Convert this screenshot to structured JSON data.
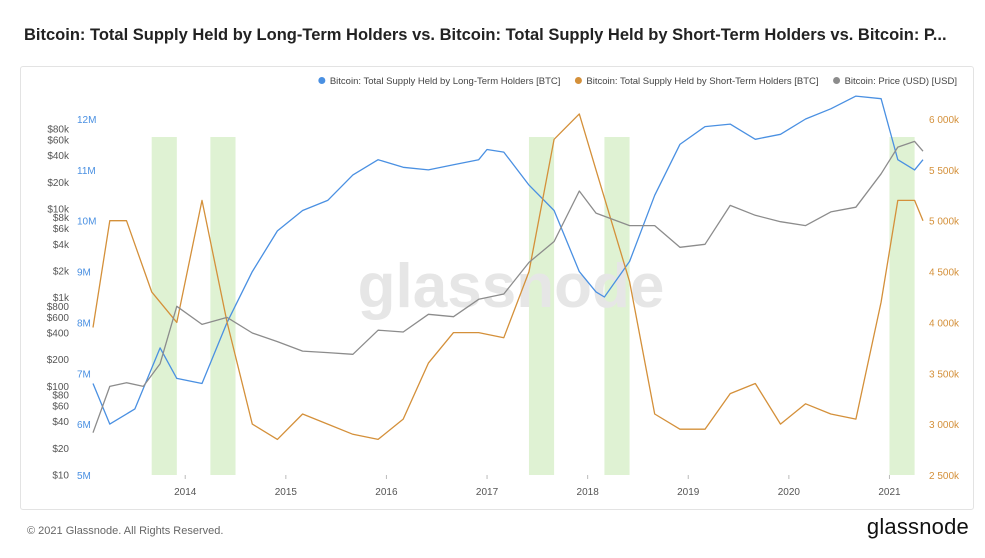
{
  "title": "Bitcoin: Total Supply Held by Long-Term Holders vs. Bitcoin: Total Supply Held by Short-Term Holders vs. Bitcoin: P...",
  "footer": "© 2021 Glassnode. All Rights Reserved.",
  "brand": "glassnode",
  "watermark": "glassnode",
  "chart_data": {
    "type": "line",
    "legend_position": "top-right",
    "grid": false,
    "x_ticks": [
      "2014",
      "2015",
      "2016",
      "2017",
      "2018",
      "2019",
      "2020",
      "2021"
    ],
    "xlim": [
      "2013-02",
      "2021-05"
    ],
    "axes": {
      "price": {
        "scale": "log",
        "ticks": [
          "$10",
          "$20",
          "$40",
          "$60",
          "$80",
          "$100",
          "$200",
          "$400",
          "$600",
          "$800",
          "$1k",
          "$2k",
          "$4k",
          "$6k",
          "$8k",
          "$10k",
          "$20k",
          "$40k",
          "$60k",
          "$80k"
        ],
        "range": [
          10,
          80000
        ]
      },
      "lth": {
        "ticks": [
          "5M",
          "6M",
          "7M",
          "8M",
          "9M",
          "10M",
          "11M",
          "12M"
        ],
        "range": [
          5000000,
          12000000
        ],
        "color": "#4a90e2"
      },
      "sth": {
        "ticks": [
          "2 500k",
          "3 000k",
          "3 500k",
          "4 000k",
          "4 500k",
          "5 000k",
          "5 500k",
          "6 000k"
        ],
        "range": [
          2500000,
          6000000
        ],
        "color": "#d4903a"
      }
    },
    "shaded_periods": [
      [
        "2013-09",
        "2013-12"
      ],
      [
        "2014-04",
        "2014-07"
      ],
      [
        "2017-06",
        "2017-09"
      ],
      [
        "2018-03",
        "2018-06"
      ],
      [
        "2021-01",
        "2021-04"
      ]
    ],
    "series": [
      {
        "name": "Bitcoin: Total Supply Held by Long-Term Holders [BTC]",
        "color": "#4a90e2",
        "axis": "lth",
        "points": [
          [
            "2013-02",
            6.8
          ],
          [
            "2013-04",
            6.0
          ],
          [
            "2013-07",
            6.3
          ],
          [
            "2013-10",
            7.5
          ],
          [
            "2013-12",
            6.9
          ],
          [
            "2014-03",
            6.8
          ],
          [
            "2014-06",
            8.0
          ],
          [
            "2014-09",
            9.0
          ],
          [
            "2014-12",
            9.8
          ],
          [
            "2015-03",
            10.2
          ],
          [
            "2015-06",
            10.4
          ],
          [
            "2015-09",
            10.9
          ],
          [
            "2015-12",
            11.2
          ],
          [
            "2016-03",
            11.05
          ],
          [
            "2016-06",
            11.0
          ],
          [
            "2016-09",
            11.1
          ],
          [
            "2016-12",
            11.2
          ],
          [
            "2017-01",
            11.4
          ],
          [
            "2017-03",
            11.35
          ],
          [
            "2017-06",
            10.7
          ],
          [
            "2017-09",
            10.2
          ],
          [
            "2017-12",
            9.0
          ],
          [
            "2018-02",
            8.6
          ],
          [
            "2018-03",
            8.5
          ],
          [
            "2018-06",
            9.2
          ],
          [
            "2018-09",
            10.5
          ],
          [
            "2018-12",
            11.5
          ],
          [
            "2019-03",
            11.85
          ],
          [
            "2019-06",
            11.9
          ],
          [
            "2019-09",
            11.6
          ],
          [
            "2019-12",
            11.7
          ],
          [
            "2020-03",
            12.0
          ],
          [
            "2020-06",
            12.2
          ],
          [
            "2020-09",
            12.45
          ],
          [
            "2020-12",
            12.4
          ],
          [
            "2021-02",
            11.2
          ],
          [
            "2021-04",
            11.0
          ],
          [
            "2021-05",
            11.2
          ]
        ]
      },
      {
        "name": "Bitcoin: Total Supply Held by Short-Term Holders [BTC]",
        "color": "#d4903a",
        "axis": "sth",
        "points": [
          [
            "2013-02",
            3.95
          ],
          [
            "2013-04",
            5.0
          ],
          [
            "2013-06",
            5.0
          ],
          [
            "2013-09",
            4.3
          ],
          [
            "2013-12",
            4.0
          ],
          [
            "2014-03",
            5.2
          ],
          [
            "2014-06",
            4.0
          ],
          [
            "2014-09",
            3.0
          ],
          [
            "2014-12",
            2.85
          ],
          [
            "2015-03",
            3.1
          ],
          [
            "2015-06",
            3.0
          ],
          [
            "2015-09",
            2.9
          ],
          [
            "2015-12",
            2.85
          ],
          [
            "2016-03",
            3.05
          ],
          [
            "2016-06",
            3.6
          ],
          [
            "2016-09",
            3.9
          ],
          [
            "2016-12",
            3.9
          ],
          [
            "2017-03",
            3.85
          ],
          [
            "2017-06",
            4.5
          ],
          [
            "2017-09",
            5.8
          ],
          [
            "2017-12",
            6.05
          ],
          [
            "2018-02",
            5.5
          ],
          [
            "2018-06",
            4.4
          ],
          [
            "2018-09",
            3.1
          ],
          [
            "2018-12",
            2.95
          ],
          [
            "2019-03",
            2.95
          ],
          [
            "2019-06",
            3.3
          ],
          [
            "2019-09",
            3.4
          ],
          [
            "2019-12",
            3.0
          ],
          [
            "2020-03",
            3.2
          ],
          [
            "2020-06",
            3.1
          ],
          [
            "2020-09",
            3.05
          ],
          [
            "2020-12",
            4.2
          ],
          [
            "2021-02",
            5.2
          ],
          [
            "2021-04",
            5.2
          ],
          [
            "2021-05",
            5.0
          ]
        ]
      },
      {
        "name": "Bitcoin: Price (USD) [USD]",
        "color": "#8c8c8c",
        "axis": "price",
        "points": [
          [
            "2013-02",
            30
          ],
          [
            "2013-04",
            100
          ],
          [
            "2013-06",
            110
          ],
          [
            "2013-08",
            100
          ],
          [
            "2013-10",
            180
          ],
          [
            "2013-12",
            800
          ],
          [
            "2014-03",
            500
          ],
          [
            "2014-06",
            600
          ],
          [
            "2014-09",
            400
          ],
          [
            "2014-12",
            320
          ],
          [
            "2015-03",
            250
          ],
          [
            "2015-06",
            240
          ],
          [
            "2015-09",
            230
          ],
          [
            "2015-12",
            430
          ],
          [
            "2016-03",
            410
          ],
          [
            "2016-06",
            650
          ],
          [
            "2016-09",
            610
          ],
          [
            "2016-12",
            960
          ],
          [
            "2017-03",
            1100
          ],
          [
            "2017-06",
            2500
          ],
          [
            "2017-09",
            4300
          ],
          [
            "2017-12",
            16000
          ],
          [
            "2018-02",
            9000
          ],
          [
            "2018-06",
            6500
          ],
          [
            "2018-09",
            6500
          ],
          [
            "2018-12",
            3700
          ],
          [
            "2019-03",
            4000
          ],
          [
            "2019-06",
            11000
          ],
          [
            "2019-09",
            8500
          ],
          [
            "2019-12",
            7200
          ],
          [
            "2020-03",
            6500
          ],
          [
            "2020-06",
            9300
          ],
          [
            "2020-09",
            10500
          ],
          [
            "2020-12",
            25000
          ],
          [
            "2021-02",
            50000
          ],
          [
            "2021-04",
            58000
          ],
          [
            "2021-05",
            45000
          ]
        ]
      }
    ]
  }
}
